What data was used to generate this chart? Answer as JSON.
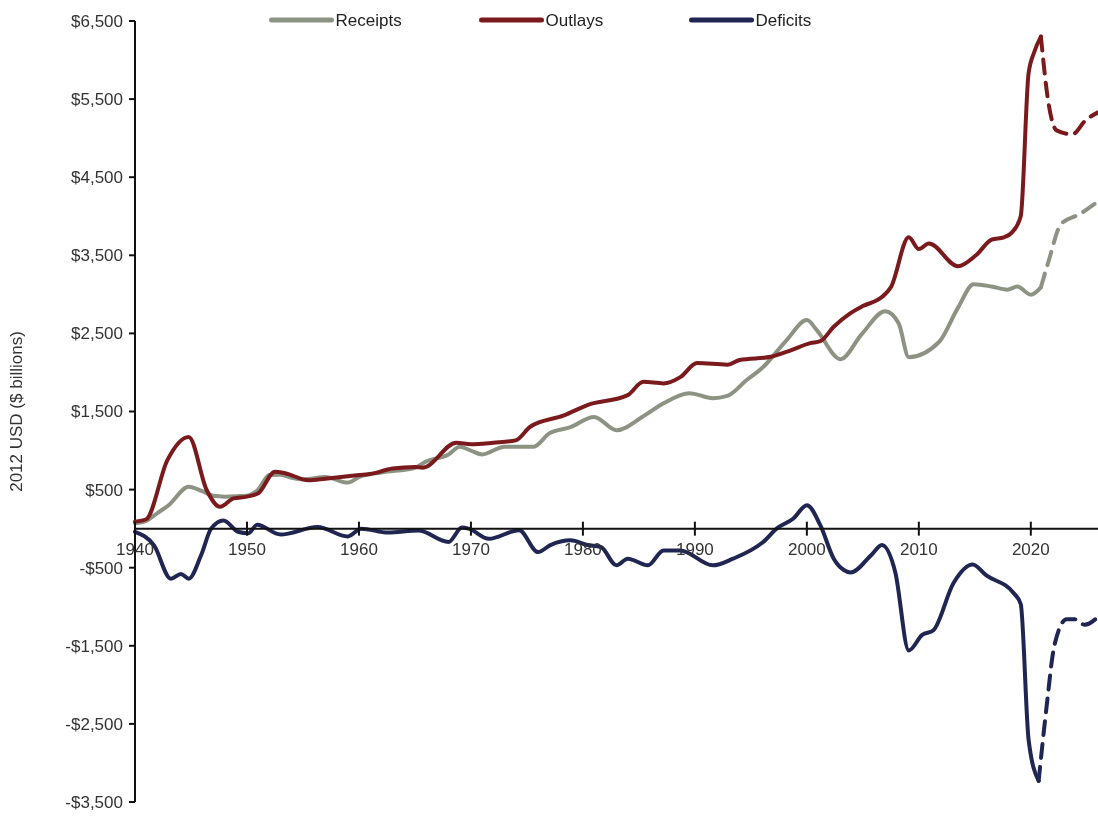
{
  "chart_data": {
    "type": "line",
    "ylabel": "2012 USD ($ billions)",
    "xlim": [
      1940,
      2026
    ],
    "xticks": [
      1940,
      1950,
      1960,
      1970,
      1980,
      1990,
      2000,
      2010,
      2020
    ],
    "ylim": [
      -3500,
      6500
    ],
    "yticks": [
      {
        "value": 6500,
        "label": "$6,500"
      },
      {
        "value": 5500,
        "label": "$5,500"
      },
      {
        "value": 4500,
        "label": "$4,500"
      },
      {
        "value": 3500,
        "label": "$3,500"
      },
      {
        "value": 2500,
        "label": "$2,500"
      },
      {
        "value": 1500,
        "label": "$1,500"
      },
      {
        "value": 500,
        "label": "$500"
      },
      {
        "value": -500,
        "label": "-$500"
      },
      {
        "value": -1500,
        "label": "-$1,500"
      },
      {
        "value": -2500,
        "label": "-$2,500"
      },
      {
        "value": -3500,
        "label": "-$3,500"
      }
    ],
    "grid": false,
    "legend": "top",
    "marker": "none",
    "series": [
      {
        "name": "Receipts",
        "color": "#8d9383",
        "line_style": "solid",
        "x": [
          1940,
          1941,
          1942,
          1943,
          1944.8,
          1946,
          1947,
          1948,
          1950,
          1951,
          1952,
          1953,
          1954,
          1955,
          1957,
          1959,
          1960,
          1962,
          1965,
          1966,
          1968,
          1969,
          1970,
          1971,
          1973,
          1975.6,
          1977,
          1978.9,
          1981,
          1983,
          1985.4,
          1987.2,
          1989.5,
          1991.6,
          1992.9,
          1994.6,
          1996.1,
          1998.2,
          2000,
          2000.9,
          2003,
          2004.9,
          2007,
          2008.2,
          2009.1,
          2011.8,
          2013.5,
          2014.9,
          2016.5,
          2017.9,
          2018.8,
          2020,
          2020.9
        ],
        "values": [
          70,
          100,
          200,
          300,
          536,
          480,
          420,
          410,
          420,
          500,
          686,
          690,
          650,
          630,
          660,
          590,
          660,
          720,
          780,
          860,
          950,
          1050,
          1000,
          950,
          1050,
          1050,
          1220,
          1300,
          1430,
          1260,
          1440,
          1605,
          1735,
          1670,
          1700,
          1900,
          2070,
          2415,
          2670,
          2540,
          2170,
          2490,
          2785,
          2630,
          2195,
          2390,
          2830,
          3130,
          3100,
          3060,
          3100,
          2995,
          3090
        ]
      },
      {
        "name": "Outlays",
        "color": "#7a1a1c",
        "line_style": "solid",
        "x": [
          1940,
          1941,
          1942.9,
          1944.8,
          1946.4,
          1947.6,
          1948.8,
          1950,
          1951,
          1952.5,
          1953.4,
          1955.5,
          1957,
          1959.6,
          1961,
          1963,
          1965,
          1965.7,
          1968.7,
          1970,
          1972,
          1974,
          1975.3,
          1978.3,
          1980.4,
          1984,
          1985.4,
          1987.2,
          1988.7,
          1990.2,
          1992.9,
          1994,
          1996.8,
          1998.5,
          2000.3,
          2001.2,
          2002.4,
          2003.9,
          2005,
          2006.7,
          2007.5,
          2009.1,
          2010,
          2010.9,
          2013.5,
          2015.1,
          2016.5,
          2017.6,
          2018.3,
          2019.1,
          2019.8,
          2020.3,
          2020.9
        ],
        "values": [
          90,
          120,
          880,
          1175,
          495,
          280,
          388,
          410,
          452,
          730,
          710,
          620,
          640,
          680,
          700,
          770,
          790,
          780,
          1100,
          1080,
          1100,
          1130,
          1305,
          1450,
          1583,
          1710,
          1880,
          1860,
          1940,
          2120,
          2100,
          2160,
          2200,
          2280,
          2375,
          2400,
          2585,
          2760,
          2850,
          2965,
          3090,
          3730,
          3580,
          3650,
          3360,
          3500,
          3700,
          3730,
          3790,
          4000,
          5830,
          6100,
          6300
        ]
      },
      {
        "name": "Deficits",
        "color": "#1f2652",
        "line_style": "solid",
        "x": [
          1940,
          1941.7,
          1943.2,
          1944.1,
          1944.8,
          1945.9,
          1946.8,
          1947.9,
          1949.2,
          1950.1,
          1950.9,
          1953,
          1956.3,
          1959,
          1960.2,
          1962.6,
          1965.3,
          1968,
          1969.2,
          1969.8,
          1971.6,
          1974.3,
          1976,
          1977.1,
          1978.9,
          1980.4,
          1981.6,
          1983,
          1984,
          1985.8,
          1987.2,
          1988.7,
          1991.6,
          1993.4,
          1996.1,
          1997.3,
          1998.8,
          2000,
          2001.2,
          2002.4,
          2003.3,
          2003.9,
          2005.8,
          2006.7,
          2007.9,
          2009.1,
          2010.3,
          2011.3,
          2013.1,
          2014.8,
          2016,
          2018.5,
          2019.1,
          2019.8,
          2020.7
        ],
        "values": [
          -40,
          -215,
          -640,
          -580,
          -640,
          -340,
          0,
          105,
          -40,
          -60,
          50,
          -75,
          20,
          -100,
          0,
          -50,
          -25,
          -170,
          15,
          0,
          -130,
          -20,
          -300,
          -210,
          -150,
          -210,
          -235,
          -470,
          -385,
          -470,
          -280,
          -280,
          -470,
          -385,
          -170,
          0,
          130,
          300,
          45,
          -385,
          -530,
          -560,
          -330,
          -210,
          -560,
          -1560,
          -1360,
          -1300,
          -695,
          -460,
          -595,
          -830,
          -965,
          -2700,
          -3230
        ]
      },
      {
        "color": "#8d9383",
        "line_style": "dashed",
        "x": [
          2020.9,
          2021.6,
          2022.7,
          2024.4,
          2026
        ],
        "values": [
          3090,
          3430,
          3900,
          4030,
          4190
        ]
      },
      {
        "color": "#7a1a1c",
        "line_style": "dashed",
        "x": [
          2020.9,
          2021.6,
          2022.3,
          2023.7,
          2024.9,
          2026
        ],
        "values": [
          6300,
          5430,
          5100,
          5050,
          5230,
          5330
        ]
      },
      {
        "color": "#1f2652",
        "line_style": "dashed",
        "x": [
          2020.7,
          2021.4,
          2022.1,
          2023.2,
          2023.9,
          2024.8,
          2026
        ],
        "values": [
          -3230,
          -2290,
          -1500,
          -1160,
          -1160,
          -1230,
          -1130
        ]
      }
    ]
  }
}
